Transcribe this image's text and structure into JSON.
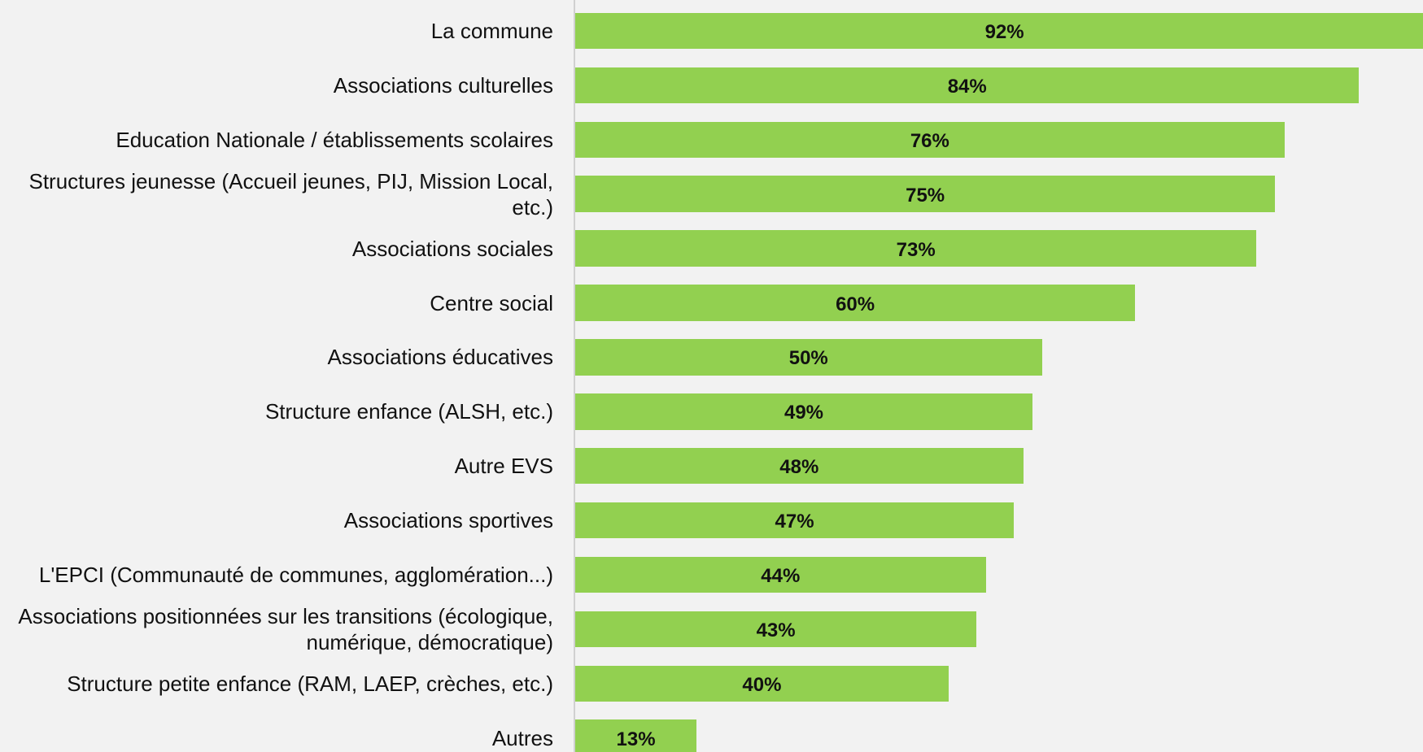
{
  "chart_data": {
    "type": "bar",
    "orientation": "horizontal",
    "categories": [
      "La commune",
      "Associations culturelles",
      "Education Nationale / établissements scolaires",
      "Structures jeunesse (Accueil jeunes, PIJ, Mission Local, etc.)",
      "Associations sociales",
      "Centre social",
      "Associations éducatives",
      "Structure enfance (ALSH, etc.)",
      "Autre EVS",
      "Associations sportives",
      "L'EPCI (Communauté de communes, agglomération...)",
      "Associations positionnées sur les transitions (écologique, numérique, démocratique)",
      "Structure petite enfance (RAM, LAEP, crèches, etc.)",
      "Autres"
    ],
    "values": [
      92,
      84,
      76,
      75,
      73,
      60,
      50,
      49,
      48,
      47,
      44,
      43,
      40,
      13
    ],
    "value_labels": [
      "92%",
      "84%",
      "76%",
      "75%",
      "73%",
      "60%",
      "50%",
      "49%",
      "48%",
      "47%",
      "44%",
      "43%",
      "40%",
      "13%"
    ],
    "color": "#92d050"
  }
}
